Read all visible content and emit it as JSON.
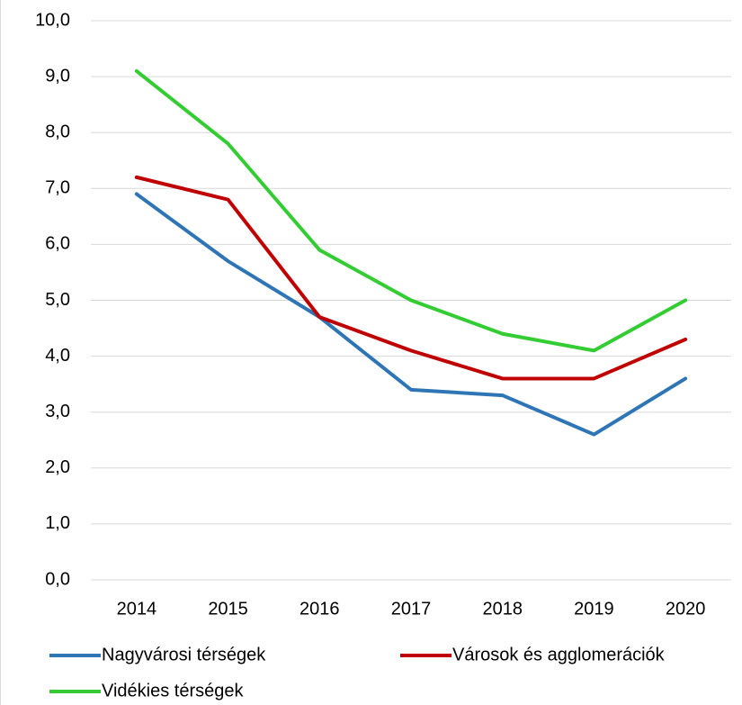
{
  "chart_data": {
    "type": "line",
    "categories": [
      "2014",
      "2015",
      "2016",
      "2017",
      "2018",
      "2019",
      "2020"
    ],
    "series": [
      {
        "name": "Nagyvárosi térségek",
        "color": "#2e75b6",
        "values": [
          6.9,
          5.7,
          4.7,
          3.4,
          3.3,
          2.6,
          3.6
        ]
      },
      {
        "name": "Városok és agglomerációk",
        "color": "#c00000",
        "values": [
          7.2,
          6.8,
          4.7,
          4.1,
          3.6,
          3.6,
          4.3
        ]
      },
      {
        "name": "Vidékies térségek",
        "color": "#33cc33",
        "values": [
          9.1,
          7.8,
          5.9,
          5.0,
          4.4,
          4.1,
          5.0
        ]
      }
    ],
    "ylim": [
      0,
      10
    ],
    "yticks": [
      {
        "value": 0,
        "label": "0,0"
      },
      {
        "value": 1,
        "label": "1,0"
      },
      {
        "value": 2,
        "label": "2,0"
      },
      {
        "value": 3,
        "label": "3,0"
      },
      {
        "value": 4,
        "label": "4,0"
      },
      {
        "value": 5,
        "label": "5,0"
      },
      {
        "value": 6,
        "label": "6,0"
      },
      {
        "value": 7,
        "label": "7,0"
      },
      {
        "value": 8,
        "label": "8,0"
      },
      {
        "value": 9,
        "label": "9,0"
      },
      {
        "value": 10,
        "label": "10,0"
      }
    ],
    "grid": true,
    "legend": "bottom"
  }
}
